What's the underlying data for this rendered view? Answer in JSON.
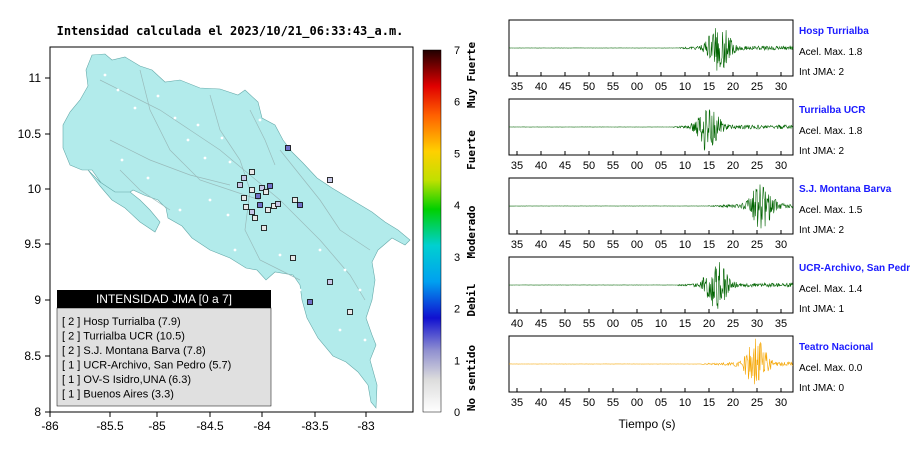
{
  "map": {
    "title": "Intensidad calculada el 2023/10/21_06:33:43_a.m.",
    "x_ticks": [
      "-86",
      "-85.5",
      "-85",
      "-84.5",
      "-84",
      "-83.5",
      "-83"
    ],
    "y_ticks": [
      "11",
      "10.5",
      "10",
      "9.5",
      "9",
      "8.5",
      "8"
    ],
    "legend": {
      "title": "INTENSIDAD JMA [0 a 7]",
      "items": [
        "[ 2 ]  Hosp Turrialba (7.9)",
        "[ 2 ]  Turrialba UCR (10.5)",
        "[ 2 ]  S.J. Montana Barva (7.8)",
        "[ 1 ]  UCR-Archivo, San Pedro (5.7)",
        "[ 1 ]  OV-S Isidro,UNA (6.3)",
        "[ 1 ]  Buenos Aires (3.3)"
      ]
    },
    "colorbar": {
      "ticks": [
        "7",
        "6",
        "5",
        "4",
        "3",
        "2",
        "1",
        "0"
      ],
      "labels": [
        "Muy Fuerte",
        "Fuerte",
        "Moderado",
        "Debil",
        "No sentido"
      ]
    }
  },
  "waveforms": {
    "xlabel": "Tiempo (s)",
    "panels": [
      {
        "name": "Hosp Turrialba",
        "acel": "Acel. Max. 1.8",
        "jma": "Int JMA: 2",
        "color": "#006400",
        "ticks": [
          "35",
          "40",
          "45",
          "50",
          "55",
          "00",
          "05",
          "10",
          "15",
          "20",
          "25",
          "30"
        ],
        "onset": 0.6,
        "peak": 0.74
      },
      {
        "name": "Turrialba UCR",
        "acel": "Acel. Max. 1.8",
        "jma": "Int JMA: 2",
        "color": "#006400",
        "ticks": [
          "35",
          "40",
          "45",
          "50",
          "55",
          "00",
          "05",
          "10",
          "15",
          "20",
          "25",
          "30"
        ],
        "onset": 0.58,
        "peak": 0.7
      },
      {
        "name": "S.J. Montana Barva",
        "acel": "Acel. Max. 1.5",
        "jma": "Int JMA: 2",
        "color": "#006400",
        "ticks": [
          "35",
          "40",
          "45",
          "50",
          "55",
          "00",
          "05",
          "10",
          "15",
          "20",
          "25",
          "30"
        ],
        "onset": 0.7,
        "peak": 0.89
      },
      {
        "name": "UCR-Archivo, San Pedro",
        "acel": "Acel. Max. 1.4",
        "jma": "Int JMA: 1",
        "color": "#006400",
        "ticks": [
          "40",
          "45",
          "50",
          "55",
          "00",
          "05",
          "10",
          "15",
          "20",
          "25",
          "30",
          "35"
        ],
        "onset": 0.59,
        "peak": 0.73
      },
      {
        "name": "Teatro Nacional",
        "acel": "Acel. Max. 0.0",
        "jma": "Int JMA: 0",
        "color": "#f5a500",
        "ticks": [
          "35",
          "40",
          "45",
          "50",
          "55",
          "00",
          "05",
          "10",
          "15",
          "20",
          "25",
          "30"
        ],
        "onset": 0.68,
        "peak": 0.87
      }
    ]
  },
  "chart_data": [
    {
      "type": "scatter",
      "title": "Intensidad calculada el 2023/10/21_06:33:43_a.m.",
      "xlim": [
        -86,
        -82.5
      ],
      "ylim": [
        8,
        11.3
      ],
      "legend_title": "INTENSIDAD JMA [0 a 7]",
      "stations": [
        {
          "name": "Hosp Turrialba",
          "jma": 2,
          "value": 7.9
        },
        {
          "name": "Turrialba UCR",
          "jma": 2,
          "value": 10.5
        },
        {
          "name": "S.J. Montana Barva",
          "jma": 2,
          "value": 7.8
        },
        {
          "name": "UCR-Archivo, San Pedro",
          "jma": 1,
          "value": 5.7
        },
        {
          "name": "OV-S Isidro,UNA",
          "jma": 1,
          "value": 6.3
        },
        {
          "name": "Buenos Aires",
          "jma": 1,
          "value": 3.3
        }
      ],
      "colorbar_range": [
        0,
        7
      ]
    },
    {
      "type": "line",
      "xlabel": "Tiempo (s)",
      "series": [
        {
          "name": "Hosp Turrialba",
          "acel_max": 1.8,
          "int_jma": 2
        },
        {
          "name": "Turrialba UCR",
          "acel_max": 1.8,
          "int_jma": 2
        },
        {
          "name": "S.J. Montana Barva",
          "acel_max": 1.5,
          "int_jma": 2
        },
        {
          "name": "UCR-Archivo, San Pedro",
          "acel_max": 1.4,
          "int_jma": 1
        },
        {
          "name": "Teatro Nacional",
          "acel_max": 0.0,
          "int_jma": 0
        }
      ]
    }
  ]
}
